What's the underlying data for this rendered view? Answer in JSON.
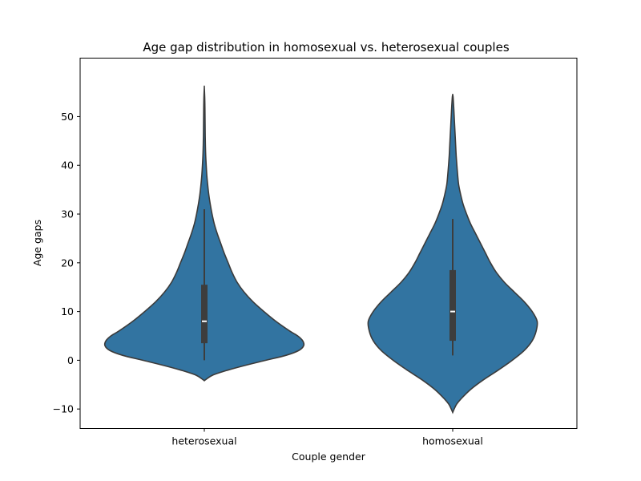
{
  "chart_data": {
    "type": "violin",
    "title": "Age gap distribution in homosexual vs. heterosexual couples",
    "xlabel": "Couple gender",
    "ylabel": "Age gaps",
    "categories": [
      "heterosexual",
      "homosexual"
    ],
    "ylim": [
      -14,
      62
    ],
    "yticks": [
      -10,
      0,
      10,
      20,
      30,
      40,
      50
    ],
    "ytick_labels": [
      "−10",
      "0",
      "10",
      "20",
      "30",
      "40",
      "50"
    ],
    "grid": false,
    "violin_color": "#3274a1",
    "series": [
      {
        "category": "heterosexual",
        "min_extent": -4.2,
        "max_extent": 56,
        "whisker_low": 0,
        "q1": 3.5,
        "median": 8,
        "q3": 15.5,
        "whisker_high": 31,
        "density_profile": [
          [
            -4.2,
            0.0
          ],
          [
            -4,
            0.012
          ],
          [
            -3,
            0.09
          ],
          [
            -2,
            0.24
          ],
          [
            -1,
            0.42
          ],
          [
            0,
            0.62
          ],
          [
            1,
            0.82
          ],
          [
            2,
            0.95
          ],
          [
            3,
            1.0
          ],
          [
            4,
            0.99
          ],
          [
            5,
            0.94
          ],
          [
            6,
            0.86
          ],
          [
            8,
            0.72
          ],
          [
            10,
            0.6
          ],
          [
            12,
            0.49
          ],
          [
            14,
            0.4
          ],
          [
            16,
            0.33
          ],
          [
            18,
            0.28
          ],
          [
            20,
            0.24
          ],
          [
            22,
            0.2
          ],
          [
            24,
            0.165
          ],
          [
            26,
            0.13
          ],
          [
            28,
            0.1
          ],
          [
            30,
            0.078
          ],
          [
            32,
            0.06
          ],
          [
            34,
            0.045
          ],
          [
            36,
            0.034
          ],
          [
            38,
            0.025
          ],
          [
            40,
            0.019
          ],
          [
            42,
            0.014
          ],
          [
            44,
            0.011
          ],
          [
            46,
            0.009
          ],
          [
            48,
            0.008
          ],
          [
            50,
            0.007
          ],
          [
            52,
            0.006
          ],
          [
            54,
            0.004
          ],
          [
            56,
            0.0
          ]
        ]
      },
      {
        "category": "homosexual",
        "min_extent": -10.7,
        "max_extent": 54.5,
        "whisker_low": 1,
        "q1": 4,
        "median": 10,
        "q3": 18.5,
        "whisker_high": 29,
        "density_profile": [
          [
            -10.7,
            0.0
          ],
          [
            -10,
            0.015
          ],
          [
            -9,
            0.04
          ],
          [
            -8,
            0.08
          ],
          [
            -6,
            0.18
          ],
          [
            -4,
            0.31
          ],
          [
            -2,
            0.46
          ],
          [
            0,
            0.6
          ],
          [
            2,
            0.72
          ],
          [
            4,
            0.8
          ],
          [
            6,
            0.84
          ],
          [
            8,
            0.85
          ],
          [
            10,
            0.8
          ],
          [
            12,
            0.72
          ],
          [
            14,
            0.62
          ],
          [
            16,
            0.52
          ],
          [
            18,
            0.44
          ],
          [
            20,
            0.38
          ],
          [
            22,
            0.33
          ],
          [
            24,
            0.28
          ],
          [
            26,
            0.23
          ],
          [
            28,
            0.18
          ],
          [
            30,
            0.14
          ],
          [
            32,
            0.105
          ],
          [
            34,
            0.08
          ],
          [
            36,
            0.06
          ],
          [
            38,
            0.05
          ],
          [
            40,
            0.042
          ],
          [
            42,
            0.035
          ],
          [
            44,
            0.03
          ],
          [
            46,
            0.025
          ],
          [
            48,
            0.02
          ],
          [
            50,
            0.015
          ],
          [
            52,
            0.01
          ],
          [
            54,
            0.004
          ],
          [
            54.5,
            0.0
          ]
        ]
      }
    ]
  }
}
